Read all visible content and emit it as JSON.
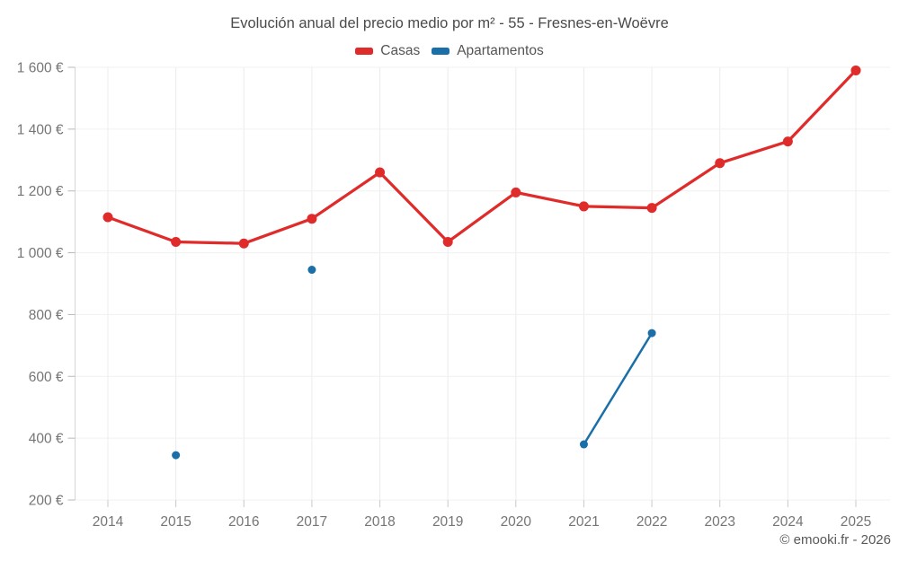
{
  "header": {
    "title": "Evolución anual del precio medio por m² - 55 - Fresnes-en-Woëvre"
  },
  "legend": {
    "items": [
      {
        "label": "Casas",
        "color": "#e02b2b"
      },
      {
        "label": "Apartamentos",
        "color": "#1a6fa8"
      }
    ]
  },
  "footer": {
    "credit": "© emooki.fr - 2026"
  },
  "chart_data": {
    "type": "line",
    "title": "Evolución anual del precio medio por m² - 55 - Fresnes-en-Woëvre",
    "xlabel": "",
    "ylabel": "",
    "categories": [
      "2014",
      "2015",
      "2016",
      "2017",
      "2018",
      "2019",
      "2020",
      "2021",
      "2022",
      "2023",
      "2024",
      "2025"
    ],
    "series": [
      {
        "name": "Casas",
        "color": "#e02b2b",
        "values": [
          1115,
          1035,
          1030,
          1110,
          1260,
          1035,
          1195,
          1150,
          1145,
          1290,
          1360,
          1590
        ]
      },
      {
        "name": "Apartamentos",
        "color": "#1a6fa8",
        "values": [
          null,
          345,
          null,
          945,
          null,
          null,
          null,
          380,
          740,
          null,
          null,
          null
        ]
      }
    ],
    "ylim": [
      200,
      1600
    ],
    "yticks": [
      {
        "value": 200,
        "label": "200 €"
      },
      {
        "value": 400,
        "label": "400 €"
      },
      {
        "value": 600,
        "label": "600 €"
      },
      {
        "value": 800,
        "label": "800 €"
      },
      {
        "value": 1000,
        "label": "1 000 €"
      },
      {
        "value": 1200,
        "label": "1 200 €"
      },
      {
        "value": 1400,
        "label": "1 400 €"
      },
      {
        "value": 1600,
        "label": "1 600 €"
      }
    ],
    "grid": true,
    "legend_position": "top",
    "gap_policy": "lines only connect consecutive years with data"
  }
}
